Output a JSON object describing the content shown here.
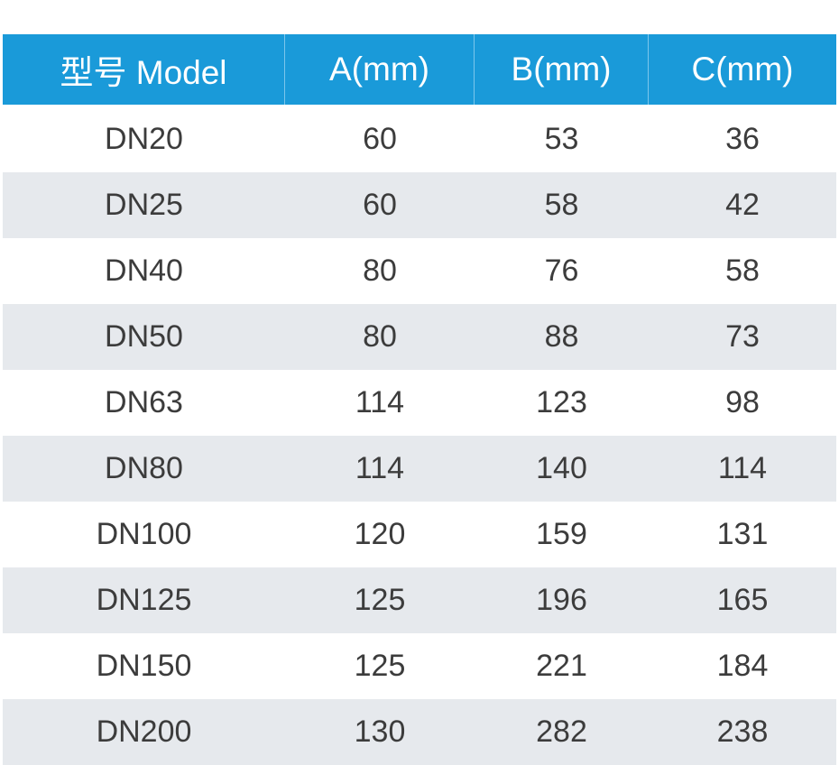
{
  "table": {
    "header_color": "#1a9ad9",
    "stripe_color": "#e6e9ed",
    "headers": [
      "型号 Model",
      "A(mm)",
      "B(mm)",
      "C(mm)"
    ],
    "rows": [
      [
        "DN20",
        "60",
        "53",
        "36"
      ],
      [
        "DN25",
        "60",
        "58",
        "42"
      ],
      [
        "DN40",
        "80",
        "76",
        "58"
      ],
      [
        "DN50",
        "80",
        "88",
        "73"
      ],
      [
        "DN63",
        "114",
        "123",
        "98"
      ],
      [
        "DN80",
        "114",
        "140",
        "114"
      ],
      [
        "DN100",
        "120",
        "159",
        "131"
      ],
      [
        "DN125",
        "125",
        "196",
        "165"
      ],
      [
        "DN150",
        "125",
        "221",
        "184"
      ],
      [
        "DN200",
        "130",
        "282",
        "238"
      ]
    ]
  }
}
